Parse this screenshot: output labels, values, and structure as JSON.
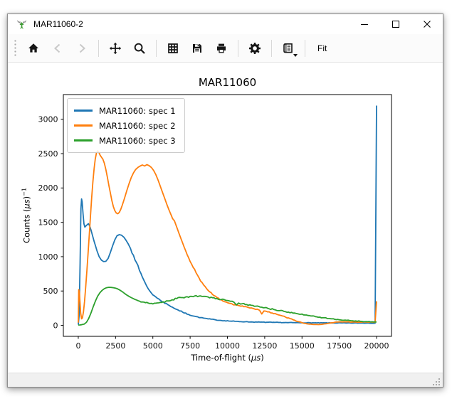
{
  "window": {
    "title": "MAR11060-2",
    "icon": "mantid-logo",
    "controls": [
      {
        "name": "minimize"
      },
      {
        "name": "maximize"
      },
      {
        "name": "close"
      }
    ]
  },
  "toolbar": {
    "buttons": [
      {
        "name": "home",
        "icon": "home-icon",
        "enabled": true,
        "group": 0
      },
      {
        "name": "back",
        "icon": "arrow-left-icon",
        "enabled": false,
        "group": 0
      },
      {
        "name": "forward",
        "icon": "arrow-right-icon",
        "enabled": false,
        "group": 0
      },
      {
        "name": "pan",
        "icon": "move-icon",
        "enabled": true,
        "group": 1
      },
      {
        "name": "zoom",
        "icon": "magnifier-icon",
        "enabled": true,
        "group": 1
      },
      {
        "name": "grid",
        "icon": "grid-icon",
        "enabled": true,
        "group": 2
      },
      {
        "name": "save",
        "icon": "floppy-icon",
        "enabled": true,
        "group": 2
      },
      {
        "name": "print",
        "icon": "printer-icon",
        "enabled": true,
        "group": 2
      },
      {
        "name": "customize",
        "icon": "gear-icon",
        "enabled": true,
        "group": 3
      },
      {
        "name": "generate-script",
        "icon": "script-icon",
        "enabled": true,
        "group": 4,
        "has_dropdown": true
      }
    ],
    "fit_button_label": "Fit"
  },
  "statusbar": {
    "text": ""
  },
  "colors": {
    "series_blue": "#1f77b4",
    "series_orange": "#ff7f0e",
    "series_green": "#2ca02c",
    "disabled_icon": "#c9c9c9",
    "window_border": "#8f8f8f",
    "statusbar_bg": "#f0f0f0"
  },
  "chart_data": {
    "type": "line",
    "title": "MAR11060",
    "xlabel": "Time-of-flight (μs)",
    "ylabel": "Counts (μs)⁻¹",
    "xlabel_parts": {
      "pre": "Time-of-flight (",
      "italic": "μs",
      "post": ")"
    },
    "ylabel_parts": {
      "pre": "Counts (",
      "italic": "μs",
      "post": ")",
      "sup": "−1"
    },
    "xlim": [
      -1000,
      21000
    ],
    "ylim": [
      -160,
      3360
    ],
    "xticks": [
      0,
      2500,
      5000,
      7500,
      10000,
      12500,
      15000,
      17500,
      20000
    ],
    "yticks": [
      0,
      500,
      1000,
      1500,
      2000,
      2500,
      3000
    ],
    "grid": false,
    "legend_position": "upper left",
    "noise_factor": 1.1,
    "series": [
      {
        "name": "MAR11060: spec 1",
        "color": "#1f77b4",
        "points": [
          [
            0,
            10
          ],
          [
            60,
            150
          ],
          [
            120,
            900
          ],
          [
            180,
            1700
          ],
          [
            220,
            1840
          ],
          [
            260,
            1800
          ],
          [
            320,
            1620
          ],
          [
            380,
            1480
          ],
          [
            440,
            1430
          ],
          [
            520,
            1450
          ],
          [
            600,
            1465
          ],
          [
            680,
            1480
          ],
          [
            760,
            1450
          ],
          [
            850,
            1390
          ],
          [
            950,
            1310
          ],
          [
            1050,
            1230
          ],
          [
            1150,
            1160
          ],
          [
            1250,
            1090
          ],
          [
            1400,
            1000
          ],
          [
            1550,
            950
          ],
          [
            1700,
            928
          ],
          [
            1850,
            932
          ],
          [
            2000,
            975
          ],
          [
            2150,
            1060
          ],
          [
            2300,
            1155
          ],
          [
            2450,
            1245
          ],
          [
            2600,
            1305
          ],
          [
            2750,
            1320
          ],
          [
            2900,
            1312
          ],
          [
            3050,
            1285
          ],
          [
            3200,
            1240
          ],
          [
            3350,
            1185
          ],
          [
            3500,
            1120
          ],
          [
            3700,
            1020
          ],
          [
            3900,
            915
          ],
          [
            4100,
            800
          ],
          [
            4300,
            700
          ],
          [
            4500,
            610
          ],
          [
            4700,
            530
          ],
          [
            4900,
            470
          ],
          [
            5100,
            430
          ],
          [
            5300,
            395
          ],
          [
            5500,
            365
          ],
          [
            5700,
            340
          ],
          [
            6000,
            302
          ],
          [
            6300,
            266
          ],
          [
            6600,
            232
          ],
          [
            7000,
            192
          ],
          [
            7400,
            158
          ],
          [
            7800,
            132
          ],
          [
            8200,
            112
          ],
          [
            8700,
            94
          ],
          [
            9200,
            80
          ],
          [
            9800,
            68
          ],
          [
            10500,
            58
          ],
          [
            11200,
            52
          ],
          [
            12000,
            47
          ],
          [
            13000,
            43
          ],
          [
            14000,
            40
          ],
          [
            15000,
            38
          ],
          [
            16000,
            36
          ],
          [
            17000,
            35
          ],
          [
            18000,
            34
          ],
          [
            19000,
            33
          ],
          [
            19900,
            32
          ],
          [
            20000,
            3200
          ]
        ]
      },
      {
        "name": "MAR11060: spec 2",
        "color": "#ff7f0e",
        "points": [
          [
            0,
            40
          ],
          [
            30,
            520
          ],
          [
            70,
            500
          ],
          [
            110,
            350
          ],
          [
            160,
            180
          ],
          [
            220,
            95
          ],
          [
            280,
            110
          ],
          [
            350,
            200
          ],
          [
            420,
            350
          ],
          [
            500,
            560
          ],
          [
            580,
            800
          ],
          [
            660,
            1060
          ],
          [
            740,
            1330
          ],
          [
            820,
            1590
          ],
          [
            900,
            1860
          ],
          [
            980,
            2090
          ],
          [
            1060,
            2280
          ],
          [
            1140,
            2420
          ],
          [
            1220,
            2510
          ],
          [
            1300,
            2540
          ],
          [
            1380,
            2520
          ],
          [
            1460,
            2480
          ],
          [
            1550,
            2450
          ],
          [
            1650,
            2420
          ],
          [
            1750,
            2360
          ],
          [
            1850,
            2270
          ],
          [
            1950,
            2160
          ],
          [
            2050,
            2040
          ],
          [
            2150,
            1930
          ],
          [
            2250,
            1820
          ],
          [
            2350,
            1730
          ],
          [
            2450,
            1670
          ],
          [
            2550,
            1635
          ],
          [
            2650,
            1625
          ],
          [
            2750,
            1645
          ],
          [
            2850,
            1690
          ],
          [
            2950,
            1750
          ],
          [
            3100,
            1850
          ],
          [
            3250,
            1960
          ],
          [
            3400,
            2060
          ],
          [
            3550,
            2150
          ],
          [
            3700,
            2220
          ],
          [
            3850,
            2270
          ],
          [
            4000,
            2300
          ],
          [
            4150,
            2320
          ],
          [
            4300,
            2335
          ],
          [
            4450,
            2320
          ],
          [
            4600,
            2340
          ],
          [
            4750,
            2325
          ],
          [
            4900,
            2300
          ],
          [
            5050,
            2255
          ],
          [
            5200,
            2195
          ],
          [
            5350,
            2115
          ],
          [
            5500,
            2025
          ],
          [
            5650,
            1935
          ],
          [
            5800,
            1845
          ],
          [
            5950,
            1755
          ],
          [
            6100,
            1670
          ],
          [
            6250,
            1595
          ],
          [
            6320,
            1555
          ],
          [
            6450,
            1520
          ],
          [
            6600,
            1430
          ],
          [
            6750,
            1340
          ],
          [
            6900,
            1255
          ],
          [
            7100,
            1140
          ],
          [
            7300,
            1030
          ],
          [
            7500,
            930
          ],
          [
            7700,
            845
          ],
          [
            7900,
            765
          ],
          [
            8100,
            690
          ],
          [
            8400,
            590
          ],
          [
            8700,
            510
          ],
          [
            9000,
            450
          ],
          [
            9300,
            405
          ],
          [
            9600,
            370
          ],
          [
            9900,
            340
          ],
          [
            10200,
            318
          ],
          [
            10500,
            300
          ],
          [
            10800,
            285
          ],
          [
            11100,
            272
          ],
          [
            11400,
            260
          ],
          [
            11700,
            248
          ],
          [
            12000,
            235
          ],
          [
            12150,
            220
          ],
          [
            12300,
            165
          ],
          [
            12450,
            210
          ],
          [
            12700,
            195
          ],
          [
            13000,
            180
          ],
          [
            13300,
            162
          ],
          [
            13600,
            142
          ],
          [
            13900,
            120
          ],
          [
            14200,
            98
          ],
          [
            14500,
            75
          ],
          [
            14800,
            52
          ],
          [
            15100,
            32
          ],
          [
            15400,
            20
          ],
          [
            15700,
            14
          ],
          [
            16000,
            12
          ],
          [
            16300,
            14
          ],
          [
            16600,
            22
          ],
          [
            16900,
            35
          ],
          [
            17200,
            45
          ],
          [
            17500,
            50
          ],
          [
            17900,
            51
          ],
          [
            18400,
            49
          ],
          [
            18900,
            47
          ],
          [
            19400,
            46
          ],
          [
            19900,
            45
          ],
          [
            20000,
            350
          ]
        ]
      },
      {
        "name": "MAR11060: spec 3",
        "color": "#2ca02c",
        "points": [
          [
            0,
            5
          ],
          [
            200,
            8
          ],
          [
            400,
            18
          ],
          [
            550,
            45
          ],
          [
            700,
            100
          ],
          [
            850,
            180
          ],
          [
            1000,
            270
          ],
          [
            1150,
            355
          ],
          [
            1300,
            425
          ],
          [
            1450,
            475
          ],
          [
            1600,
            510
          ],
          [
            1750,
            535
          ],
          [
            1900,
            548
          ],
          [
            2050,
            554
          ],
          [
            2200,
            552
          ],
          [
            2350,
            548
          ],
          [
            2500,
            542
          ],
          [
            2650,
            530
          ],
          [
            2800,
            512
          ],
          [
            2950,
            490
          ],
          [
            3100,
            465
          ],
          [
            3250,
            442
          ],
          [
            3400,
            422
          ],
          [
            3550,
            404
          ],
          [
            3700,
            388
          ],
          [
            3900,
            370
          ],
          [
            4100,
            352
          ],
          [
            4300,
            340
          ],
          [
            4500,
            330
          ],
          [
            4700,
            323
          ],
          [
            4900,
            320
          ],
          [
            5100,
            322
          ],
          [
            5300,
            327
          ],
          [
            5500,
            334
          ],
          [
            5700,
            342
          ],
          [
            6000,
            356
          ],
          [
            6300,
            372
          ],
          [
            6600,
            390
          ],
          [
            6900,
            404
          ],
          [
            7200,
            414
          ],
          [
            7500,
            422
          ],
          [
            7800,
            427
          ],
          [
            8100,
            427
          ],
          [
            8400,
            422
          ],
          [
            8700,
            414
          ],
          [
            9000,
            402
          ],
          [
            9300,
            390
          ],
          [
            9600,
            378
          ],
          [
            9900,
            364
          ],
          [
            10200,
            350
          ],
          [
            10450,
            335
          ],
          [
            10600,
            298
          ],
          [
            10750,
            325
          ],
          [
            11000,
            315
          ],
          [
            11300,
            303
          ],
          [
            11600,
            291
          ],
          [
            11900,
            279
          ],
          [
            12300,
            264
          ],
          [
            12700,
            248
          ],
          [
            13100,
            231
          ],
          [
            13500,
            214
          ],
          [
            13900,
            198
          ],
          [
            14400,
            179
          ],
          [
            14900,
            161
          ],
          [
            15400,
            143
          ],
          [
            15900,
            127
          ],
          [
            16400,
            111
          ],
          [
            16900,
            97
          ],
          [
            17400,
            86
          ],
          [
            17900,
            76
          ],
          [
            18400,
            67
          ],
          [
            18900,
            59
          ],
          [
            19400,
            53
          ],
          [
            19900,
            49
          ],
          [
            20000,
            48
          ]
        ]
      }
    ]
  }
}
